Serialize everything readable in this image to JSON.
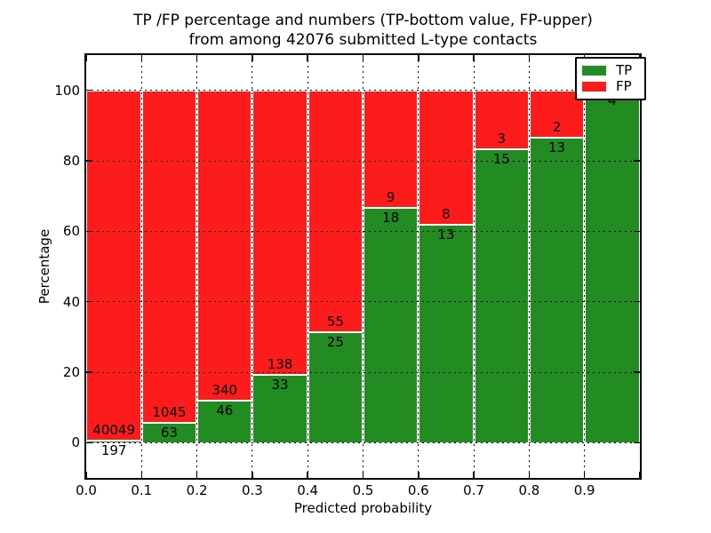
{
  "chart_data": {
    "type": "bar",
    "stacked": true,
    "normalized_to_percent": true,
    "title_line1": "TP /FP percentage and numbers (TP-bottom value, FP-upper)",
    "title_line2": "from among 42076 submitted L-type contacts",
    "xlabel": "Predicted probability",
    "ylabel": "Percentage",
    "total_contacts": 42076,
    "bin_edges": [
      0.0,
      0.1,
      0.2,
      0.3,
      0.4,
      0.5,
      0.6,
      0.7,
      0.8,
      0.9,
      1.0
    ],
    "categories": [
      "0.0-0.1",
      "0.1-0.2",
      "0.2-0.3",
      "0.3-0.4",
      "0.4-0.5",
      "0.5-0.6",
      "0.6-0.7",
      "0.7-0.8",
      "0.8-0.9",
      "0.9-1.0"
    ],
    "series": [
      {
        "name": "TP",
        "color": "#228b22",
        "values": [
          197,
          63,
          46,
          33,
          25,
          18,
          13,
          15,
          13,
          4
        ]
      },
      {
        "name": "FP",
        "color": "#fc1c1c",
        "values": [
          40049,
          1045,
          340,
          138,
          55,
          9,
          8,
          3,
          2,
          0
        ]
      }
    ],
    "tp_percent": [
      0.49,
      5.69,
      11.92,
      19.3,
      31.25,
      66.67,
      61.9,
      83.33,
      86.67,
      100.0
    ],
    "xlim": [
      0.0,
      1.0
    ],
    "ylim": [
      -10,
      110
    ],
    "yticks": [
      0,
      20,
      40,
      60,
      80,
      100
    ],
    "xtick_labels": [
      "0.0",
      "0.1",
      "0.2",
      "0.3",
      "0.4",
      "0.5",
      "0.6",
      "0.7",
      "0.8",
      "0.9"
    ],
    "grid": true,
    "grid_style": "dotted",
    "bar_edge_color": "#ffffff",
    "legend": {
      "position": "upper right",
      "entries": [
        {
          "label": "TP",
          "color": "#228b22"
        },
        {
          "label": "FP",
          "color": "#fc1c1c"
        }
      ]
    }
  }
}
